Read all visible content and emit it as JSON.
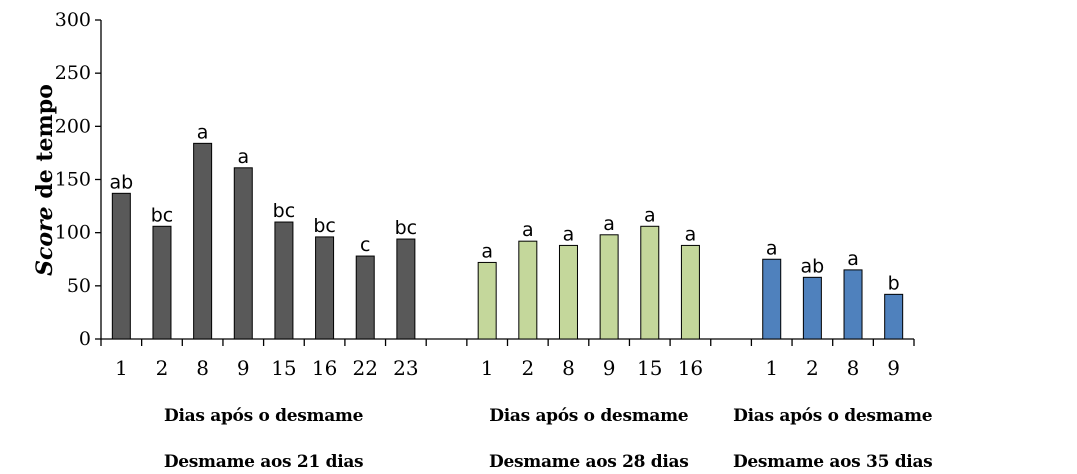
{
  "chart_data": {
    "type": "bar",
    "ylabel_italic": "Score",
    "ylabel_rest": " de tempo",
    "ylim": [
      0,
      300
    ],
    "yticks": [
      0,
      50,
      100,
      150,
      200,
      250,
      300
    ],
    "groups": [
      {
        "sublabel": "Dias após o desmame",
        "label": "Desmame aos 21 dias",
        "color": "#595959",
        "categories": [
          "1",
          "2",
          "8",
          "9",
          "15",
          "16",
          "22",
          "23"
        ],
        "values": [
          137,
          106,
          184,
          161,
          110,
          96,
          78,
          94
        ],
        "letters": [
          "ab",
          "bc",
          "a",
          "a",
          "bc",
          "bc",
          "c",
          "bc"
        ]
      },
      {
        "sublabel": "Dias após o desmame",
        "label": "Desmame aos 28 dias",
        "color": "#c4d79b",
        "categories": [
          "1",
          "2",
          "8",
          "9",
          "15",
          "16"
        ],
        "values": [
          72,
          92,
          88,
          98,
          106,
          88
        ],
        "letters": [
          "a",
          "a",
          "a",
          "a",
          "a",
          "a"
        ]
      },
      {
        "sublabel": "Dias após o desmame",
        "label": "Desmame aos 35 dias",
        "color": "#4f81bd",
        "categories": [
          "1",
          "2",
          "8",
          "9"
        ],
        "values": [
          75,
          58,
          65,
          42
        ],
        "letters": [
          "a",
          "ab",
          "a",
          "b"
        ]
      }
    ]
  }
}
